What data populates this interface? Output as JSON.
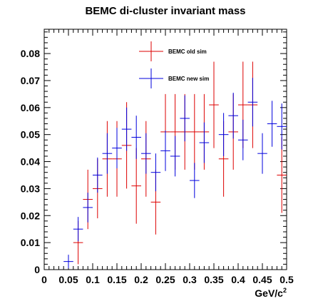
{
  "chart_data": {
    "type": "scatter",
    "title": "BEMC di-cluster invariant mass",
    "xlabel": "GeV/c",
    "xlabel_superscript": "2",
    "ylabel": "",
    "xlim": [
      0,
      0.5
    ],
    "ylim": [
      0,
      0.089
    ],
    "x_ticks": [
      0,
      0.05,
      0.1,
      0.15,
      0.2,
      0.25,
      0.3,
      0.35,
      0.4,
      0.45,
      0.5
    ],
    "x_tick_labels": [
      "0",
      "0.05",
      "0.1",
      "0.15",
      "0.2",
      "0.25",
      "0.3",
      "0.35",
      "0.4",
      "0.45",
      "0.5"
    ],
    "y_ticks": [
      0,
      0.01,
      0.02,
      0.03,
      0.04,
      0.05,
      0.06,
      0.07,
      0.08
    ],
    "y_tick_labels": [
      "0",
      "0.01",
      "0.02",
      "0.03",
      "0.04",
      "0.05",
      "0.06",
      "0.07",
      "0.08"
    ],
    "grid": false,
    "legend_position": "top-center",
    "series": [
      {
        "name": "BEMC old sim",
        "color": "#dd0000",
        "points": [
          {
            "x": 0.07,
            "y": 0.01,
            "yerr": 0.008,
            "xerr": 0.01
          },
          {
            "x": 0.09,
            "y": 0.026,
            "yerr": 0.011,
            "xerr": 0.01
          },
          {
            "x": 0.11,
            "y": 0.03,
            "yerr": 0.011,
            "xerr": 0.01
          },
          {
            "x": 0.13,
            "y": 0.041,
            "yerr": 0.014,
            "xerr": 0.01
          },
          {
            "x": 0.15,
            "y": 0.041,
            "yerr": 0.014,
            "xerr": 0.01
          },
          {
            "x": 0.17,
            "y": 0.046,
            "yerr": 0.016,
            "xerr": 0.01
          },
          {
            "x": 0.19,
            "y": 0.031,
            "yerr": 0.014,
            "xerr": 0.01
          },
          {
            "x": 0.21,
            "y": 0.041,
            "yerr": 0.014,
            "xerr": 0.01
          },
          {
            "x": 0.23,
            "y": 0.025,
            "yerr": 0.012,
            "xerr": 0.01
          },
          {
            "x": 0.25,
            "y": 0.051,
            "yerr": 0.014,
            "xerr": 0.01
          },
          {
            "x": 0.27,
            "y": 0.051,
            "yerr": 0.014,
            "xerr": 0.01
          },
          {
            "x": 0.29,
            "y": 0.051,
            "yerr": 0.014,
            "xerr": 0.01
          },
          {
            "x": 0.31,
            "y": 0.051,
            "yerr": 0.014,
            "xerr": 0.01
          },
          {
            "x": 0.33,
            "y": 0.051,
            "yerr": 0.014,
            "xerr": 0.01
          },
          {
            "x": 0.35,
            "y": 0.061,
            "yerr": 0.016,
            "xerr": 0.01
          },
          {
            "x": 0.37,
            "y": 0.041,
            "yerr": 0.014,
            "xerr": 0.01
          },
          {
            "x": 0.39,
            "y": 0.051,
            "yerr": 0.014,
            "xerr": 0.01
          },
          {
            "x": 0.41,
            "y": 0.061,
            "yerr": 0.016,
            "xerr": 0.01
          },
          {
            "x": 0.43,
            "y": 0.061,
            "yerr": 0.016,
            "xerr": 0.01
          },
          {
            "x": 0.49,
            "y": 0.035,
            "yerr": 0.014,
            "xerr": 0.01
          }
        ]
      },
      {
        "name": "BEMC new sim",
        "color": "#0000dd",
        "points": [
          {
            "x": 0.05,
            "y": 0.003,
            "yerr": 0.0025,
            "xerr": 0.01
          },
          {
            "x": 0.07,
            "y": 0.015,
            "yerr": 0.0045,
            "xerr": 0.01
          },
          {
            "x": 0.09,
            "y": 0.023,
            "yerr": 0.0055,
            "xerr": 0.01
          },
          {
            "x": 0.11,
            "y": 0.035,
            "yerr": 0.0065,
            "xerr": 0.01
          },
          {
            "x": 0.13,
            "y": 0.043,
            "yerr": 0.0075,
            "xerr": 0.01
          },
          {
            "x": 0.15,
            "y": 0.045,
            "yerr": 0.0075,
            "xerr": 0.01
          },
          {
            "x": 0.17,
            "y": 0.052,
            "yerr": 0.008,
            "xerr": 0.01
          },
          {
            "x": 0.19,
            "y": 0.049,
            "yerr": 0.008,
            "xerr": 0.01
          },
          {
            "x": 0.21,
            "y": 0.043,
            "yerr": 0.0075,
            "xerr": 0.01
          },
          {
            "x": 0.23,
            "y": 0.036,
            "yerr": 0.007,
            "xerr": 0.01
          },
          {
            "x": 0.25,
            "y": 0.044,
            "yerr": 0.0075,
            "xerr": 0.01
          },
          {
            "x": 0.27,
            "y": 0.042,
            "yerr": 0.0075,
            "xerr": 0.01
          },
          {
            "x": 0.29,
            "y": 0.056,
            "yerr": 0.0085,
            "xerr": 0.01
          },
          {
            "x": 0.31,
            "y": 0.033,
            "yerr": 0.0065,
            "xerr": 0.01
          },
          {
            "x": 0.33,
            "y": 0.047,
            "yerr": 0.0075,
            "xerr": 0.01
          },
          {
            "x": 0.37,
            "y": 0.05,
            "yerr": 0.008,
            "xerr": 0.01
          },
          {
            "x": 0.39,
            "y": 0.057,
            "yerr": 0.0085,
            "xerr": 0.01
          },
          {
            "x": 0.41,
            "y": 0.048,
            "yerr": 0.0075,
            "xerr": 0.01
          },
          {
            "x": 0.43,
            "y": 0.062,
            "yerr": 0.009,
            "xerr": 0.01
          },
          {
            "x": 0.45,
            "y": 0.043,
            "yerr": 0.0075,
            "xerr": 0.01
          },
          {
            "x": 0.47,
            "y": 0.054,
            "yerr": 0.0085,
            "xerr": 0.01
          },
          {
            "x": 0.49,
            "y": 0.053,
            "yerr": 0.0085,
            "xerr": 0.01
          }
        ]
      }
    ]
  }
}
